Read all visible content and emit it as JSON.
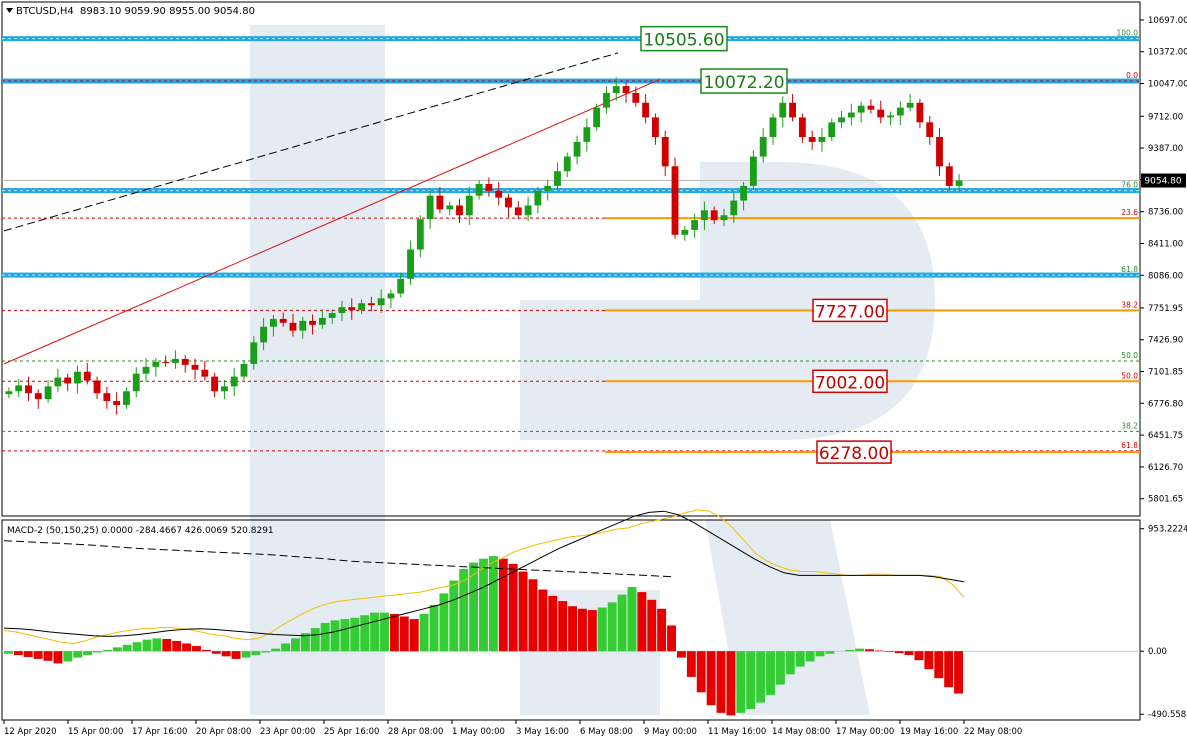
{
  "chart_data": {
    "type": "candlestick",
    "price_panel": {
      "title": "BTCUSD,H4",
      "ohlc_readout": "8983.10 9059.90 8955.00 9054.80",
      "current_price": "9054.80",
      "ylim": [
        5645,
        10860
      ],
      "y_ticks": [
        "10697.00",
        "10372.00",
        "10047.00",
        "9712.00",
        "9387.00",
        "9062.00",
        "8736.00",
        "8411.00",
        "8086.00",
        "7751.95",
        "7426.90",
        "7101.85",
        "6776.80",
        "6451.75",
        "6126.70",
        "5801.65"
      ],
      "key_levels": [
        {
          "label": "10505.60",
          "value": 10505.6
        },
        {
          "label": "10072.20",
          "value": 10072.2
        }
      ],
      "fib_upper": [
        {
          "label": "100.0",
          "value": 10505.6
        },
        {
          "label": "0.0",
          "value": 10072.2
        },
        {
          "label": "23.6",
          "value": 8670
        },
        {
          "label": "76.0",
          "value": 8952
        },
        {
          "label": "61.8",
          "value": 8088
        },
        {
          "label": "38.2",
          "value": 7727
        },
        {
          "label": "50.0",
          "value": 7002
        }
      ],
      "fib_lower": [
        {
          "label": "50.0",
          "value": 7210
        },
        {
          "label": "38.2",
          "value": 6490
        },
        {
          "label": "61.8",
          "value": 6290
        }
      ],
      "target_levels": [
        {
          "label": "7727.00",
          "value": 7727
        },
        {
          "label": "7002.00",
          "value": 7002
        },
        {
          "label": "6278.00",
          "value": 6278
        }
      ],
      "close_series": [
        6900,
        6960,
        6880,
        6820,
        6950,
        7040,
        6980,
        7100,
        7010,
        6880,
        6800,
        6760,
        6900,
        7080,
        7150,
        7200,
        7190,
        7230,
        7170,
        7120,
        7050,
        6900,
        6950,
        7050,
        7180,
        7400,
        7560,
        7640,
        7600,
        7520,
        7620,
        7580,
        7650,
        7700,
        7760,
        7730,
        7800,
        7780,
        7850,
        7900,
        8050,
        8350,
        8660,
        8900,
        8760,
        8800,
        8700,
        8900,
        9020,
        8950,
        8880,
        8780,
        8700,
        8800,
        8950,
        9000,
        9150,
        9300,
        9450,
        9600,
        9800,
        9950,
        10020,
        9950,
        9850,
        9700,
        9500,
        9200,
        8500,
        8550,
        8650,
        8750,
        8650,
        8700,
        8850,
        9000,
        9300,
        9500,
        9700,
        9850,
        9700,
        9500,
        9450,
        9500,
        9650,
        9700,
        9750,
        9820,
        9780,
        9700,
        9720,
        9800,
        9850,
        9650,
        9500,
        9200,
        9000,
        9054.8
      ]
    },
    "macd_panel": {
      "title": "MACD-2 (50,150,25) 0.0000 -284.4667 426.0069 520.8291",
      "ylim": [
        -520,
        990
      ],
      "y_ticks": [
        "953.2224",
        "0.00",
        "-490.5583"
      ],
      "histogram": [
        -20,
        -30,
        -45,
        -60,
        -75,
        -95,
        -80,
        -50,
        -30,
        -10,
        10,
        30,
        50,
        70,
        90,
        100,
        95,
        80,
        60,
        40,
        10,
        -20,
        -40,
        -60,
        -50,
        -30,
        -10,
        20,
        60,
        100,
        140,
        180,
        220,
        240,
        250,
        260,
        280,
        300,
        300,
        290,
        270,
        250,
        290,
        360,
        450,
        550,
        640,
        690,
        720,
        740,
        720,
        680,
        620,
        560,
        480,
        430,
        390,
        350,
        330,
        320,
        340,
        380,
        440,
        500,
        460,
        400,
        330,
        200,
        -50,
        -200,
        -320,
        -420,
        -480,
        -500,
        -480,
        -450,
        -400,
        -340,
        -260,
        -180,
        -120,
        -80,
        -40,
        -20,
        0,
        10,
        20,
        15,
        5,
        -5,
        -15,
        -30,
        -70,
        -140,
        -210,
        -280,
        -330
      ],
      "signal_line": [
        160,
        150,
        130,
        110,
        90,
        70,
        60,
        80,
        110,
        130,
        150,
        165,
        175,
        180,
        185,
        180,
        170,
        150,
        130,
        120,
        100,
        90,
        100,
        140,
        200,
        250,
        300,
        340,
        370,
        390,
        400,
        410,
        420,
        430,
        440,
        450,
        460,
        480,
        500,
        520,
        560,
        620,
        680,
        720,
        770,
        800,
        830,
        850,
        870,
        890,
        900,
        910,
        930,
        950,
        960,
        990,
        1010,
        1030,
        1050,
        1080,
        1100,
        1090,
        1040,
        960,
        860,
        760,
        700,
        660,
        630,
        620,
        620,
        610,
        600,
        590,
        590,
        600,
        600,
        590,
        590,
        590,
        590,
        580,
        520,
        420
      ],
      "main_line": [
        180,
        175,
        165,
        150,
        140,
        130,
        120,
        115,
        120,
        130,
        145,
        160,
        170,
        175,
        170,
        160,
        150,
        140,
        130,
        125,
        120,
        130,
        150,
        180,
        210,
        240,
        270,
        300,
        330,
        360,
        400,
        450,
        500,
        560,
        620,
        680,
        740,
        800,
        850,
        900,
        950,
        1000,
        1050,
        1080,
        1090,
        1060,
        1000,
        930,
        860,
        790,
        720,
        660,
        610,
        590,
        590,
        590,
        590,
        590,
        590,
        590,
        590,
        590,
        580,
        560,
        540
      ],
      "signal_dashed": [
        860,
        850,
        840,
        830,
        815,
        800,
        790,
        780,
        770,
        760,
        750,
        735,
        720,
        700,
        690,
        680,
        670,
        660,
        650,
        640,
        630,
        620,
        610,
        600,
        590,
        580
      ]
    },
    "x_ticks": [
      "12 Apr 2020",
      "15 Apr 00:00",
      "17 Apr 16:00",
      "20 Apr 08:00",
      "23 Apr 00:00",
      "25 Apr 16:00",
      "28 Apr 08:00",
      "1 May 00:00",
      "3 May 16:00",
      "6 May 08:00",
      "9 May 00:00",
      "11 May 16:00",
      "14 May 08:00",
      "17 May 00:00",
      "19 May 16:00",
      "22 May 08:00"
    ]
  }
}
